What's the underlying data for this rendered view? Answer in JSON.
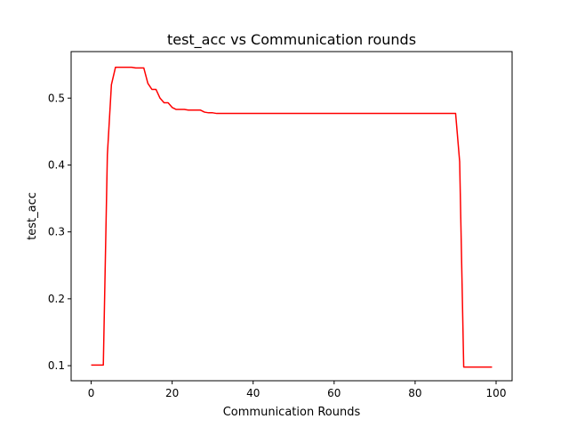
{
  "chart_data": {
    "type": "line",
    "title": "test_acc vs Communication rounds",
    "xlabel": "Communication Rounds",
    "ylabel": "test_acc",
    "xlim": [
      -4.95,
      103.95
    ],
    "ylim": [
      0.0775,
      0.5695
    ],
    "xticks": [
      0,
      20,
      40,
      60,
      80,
      100
    ],
    "yticks": [
      0.1,
      0.2,
      0.3,
      0.4,
      0.5
    ],
    "xtick_labels": [
      "0",
      "20",
      "40",
      "60",
      "80",
      "100"
    ],
    "ytick_labels": [
      "0.1",
      "0.2",
      "0.3",
      "0.4",
      "0.5"
    ],
    "grid": false,
    "legend": "none",
    "series": [
      {
        "color": "#ff0000",
        "x": [
          0,
          1,
          2,
          3,
          4,
          5,
          6,
          7,
          8,
          9,
          10,
          11,
          12,
          13,
          14,
          15,
          16,
          17,
          18,
          19,
          20,
          21,
          22,
          23,
          24,
          25,
          26,
          27,
          28,
          29,
          30,
          31,
          32,
          33,
          34,
          35,
          36,
          37,
          38,
          39,
          40,
          41,
          42,
          43,
          44,
          45,
          46,
          47,
          48,
          49,
          50,
          51,
          52,
          53,
          54,
          55,
          56,
          57,
          58,
          59,
          60,
          61,
          62,
          63,
          64,
          65,
          66,
          67,
          68,
          69,
          70,
          71,
          72,
          73,
          74,
          75,
          76,
          77,
          78,
          79,
          80,
          81,
          82,
          83,
          84,
          85,
          86,
          87,
          88,
          89,
          90,
          91,
          92,
          93,
          94,
          95,
          96,
          97,
          98,
          99
        ],
        "y": [
          0.101,
          0.101,
          0.101,
          0.101,
          0.415,
          0.52,
          0.546,
          0.546,
          0.546,
          0.546,
          0.546,
          0.545,
          0.545,
          0.545,
          0.522,
          0.513,
          0.513,
          0.5,
          0.493,
          0.493,
          0.486,
          0.483,
          0.483,
          0.483,
          0.482,
          0.482,
          0.482,
          0.482,
          0.479,
          0.478,
          0.478,
          0.477,
          0.477,
          0.477,
          0.477,
          0.477,
          0.477,
          0.477,
          0.477,
          0.477,
          0.477,
          0.477,
          0.477,
          0.477,
          0.477,
          0.477,
          0.477,
          0.477,
          0.477,
          0.477,
          0.477,
          0.477,
          0.477,
          0.477,
          0.477,
          0.477,
          0.477,
          0.477,
          0.477,
          0.477,
          0.477,
          0.477,
          0.477,
          0.477,
          0.477,
          0.477,
          0.477,
          0.477,
          0.477,
          0.477,
          0.477,
          0.477,
          0.477,
          0.477,
          0.477,
          0.477,
          0.477,
          0.477,
          0.477,
          0.477,
          0.477,
          0.477,
          0.477,
          0.477,
          0.477,
          0.477,
          0.477,
          0.477,
          0.477,
          0.477,
          0.477,
          0.405,
          0.098,
          0.098,
          0.098,
          0.098,
          0.098,
          0.098,
          0.098,
          0.098
        ]
      }
    ]
  }
}
